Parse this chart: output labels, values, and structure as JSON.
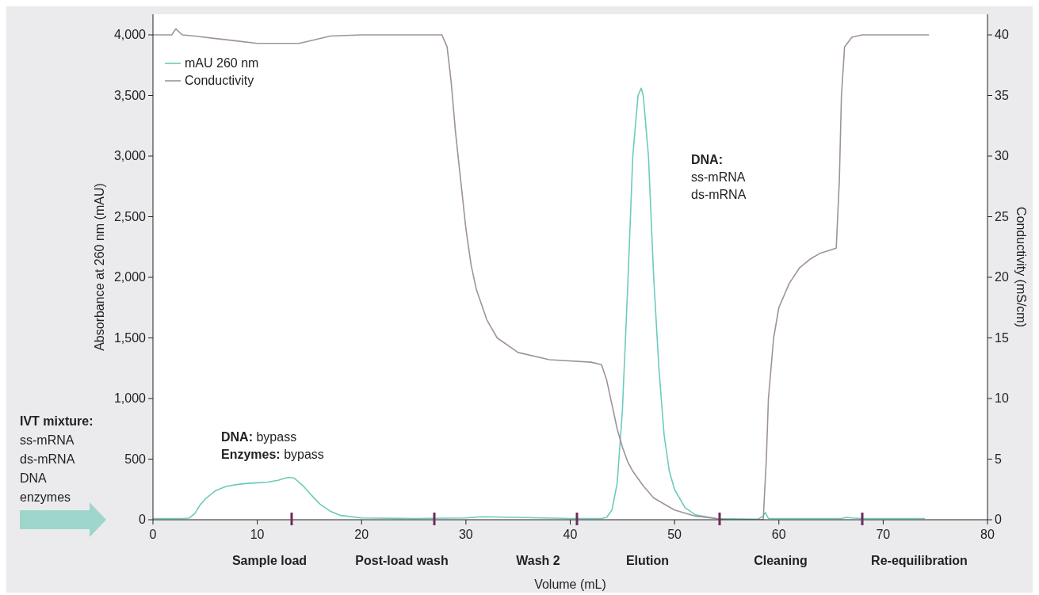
{
  "chart_data": {
    "type": "line",
    "xlabel": "Volume (mL)",
    "ylabel": "Absorbance at 260 nm (mAU)",
    "y2label": "Conductivity (mS/cm)",
    "xlim": [
      0,
      80
    ],
    "xticks": [
      0,
      10,
      20,
      30,
      40,
      50,
      60,
      70,
      80
    ],
    "ylim": [
      0,
      4170
    ],
    "yticks": [
      {
        "value": 0,
        "label": "0"
      },
      {
        "value": 500,
        "label": "500"
      },
      {
        "value": 1000,
        "label": "1,000"
      },
      {
        "value": 1500,
        "label": "1,500"
      },
      {
        "value": 2000,
        "label": "2,000"
      },
      {
        "value": 2500,
        "label": "2,500"
      },
      {
        "value": 3000,
        "label": "3,000"
      },
      {
        "value": 3500,
        "label": "3,500"
      },
      {
        "value": 4000,
        "label": "4,000"
      }
    ],
    "y2lim": [
      0,
      41.7
    ],
    "y2ticks": [
      0,
      5,
      10,
      15,
      20,
      25,
      30,
      35,
      40
    ],
    "grid": false,
    "legend": "top left",
    "marker": "none",
    "line_style": "solid",
    "series": [
      {
        "name": "mAU 260 nm",
        "color": "#6ccbbb",
        "x": [
          0,
          3,
          3.5,
          4,
          4.5,
          5,
          6,
          7,
          8,
          9,
          10,
          11,
          12,
          12.5,
          13,
          13.5,
          14,
          14.5,
          15,
          16,
          17,
          18,
          20,
          25,
          30,
          31.5,
          35,
          40,
          43,
          43.5,
          44,
          44.5,
          45,
          45.5,
          46,
          46.5,
          46.8,
          47,
          47.5,
          48,
          48.5,
          49,
          49.5,
          50,
          51,
          52,
          54,
          58,
          58.5,
          58.7,
          59,
          60,
          66,
          66.5,
          67,
          68,
          74
        ],
        "values": [
          10,
          10,
          15,
          50,
          120,
          170,
          240,
          275,
          290,
          300,
          305,
          310,
          325,
          340,
          350,
          345,
          310,
          270,
          220,
          130,
          70,
          35,
          15,
          10,
          15,
          25,
          20,
          10,
          10,
          20,
          80,
          300,
          900,
          1900,
          3000,
          3500,
          3560,
          3500,
          3000,
          2000,
          1250,
          700,
          400,
          250,
          100,
          40,
          10,
          5,
          30,
          60,
          10,
          10,
          10,
          20,
          15,
          10,
          10
        ]
      },
      {
        "name": "Conductivity",
        "color": "#a0929a",
        "axis": "y2",
        "x": [
          0,
          1.8,
          2.2,
          2.8,
          4,
          6,
          8,
          10,
          12,
          14,
          15,
          17,
          20,
          27.7,
          28.2,
          28.6,
          29,
          29.5,
          30,
          30.5,
          31,
          32,
          33,
          35,
          38,
          42,
          43,
          43.5,
          44,
          44.5,
          45,
          45.5,
          46,
          47,
          48,
          50,
          52,
          55,
          58.5,
          58.8,
          59,
          59.5,
          60,
          61,
          62,
          63,
          64,
          65.5,
          65.8,
          66,
          66.3,
          67,
          68,
          74.4
        ],
        "values": [
          40,
          40,
          40.5,
          40,
          39.9,
          39.7,
          39.5,
          39.3,
          39.3,
          39.3,
          39.5,
          39.9,
          40,
          40,
          39,
          36,
          32,
          28,
          24,
          21,
          19,
          16.5,
          15,
          13.8,
          13.2,
          13,
          12.8,
          11.5,
          9.5,
          7.5,
          6,
          4.8,
          4,
          2.8,
          1.8,
          0.8,
          0.3,
          0,
          0,
          5,
          10,
          15,
          17.5,
          19.5,
          20.8,
          21.5,
          22,
          22.4,
          28,
          35,
          39,
          39.8,
          40,
          40
        ]
      }
    ],
    "annotations": [
      "IVT mixture:\nss-mRNA\nds-mRNA\nDNA\nenzymes",
      "DNA: bypass\nEnzymes: bypass",
      "DNA:\nss-mRNA\nds-mRNA",
      "Sample load",
      "Post-load wash",
      "Wash 2",
      "Elution",
      "Cleaning",
      "Re-equilibration"
    ]
  }
}
